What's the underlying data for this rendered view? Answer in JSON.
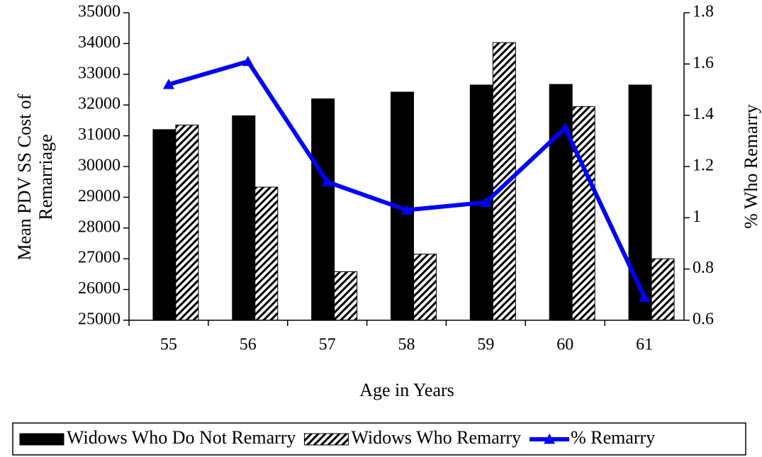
{
  "chart_data": {
    "type": "bar-line",
    "categories": [
      "55",
      "56",
      "57",
      "58",
      "59",
      "60",
      "61"
    ],
    "x_label": "Age in Years",
    "y_label": "Mean PDV SS Cost of Remarriage",
    "y2_label": "% Who Remarry",
    "ylim": [
      25000,
      35000
    ],
    "yticks": [
      25000,
      26000,
      27000,
      28000,
      29000,
      30000,
      31000,
      32000,
      33000,
      34000,
      35000
    ],
    "y2lim": [
      0.6,
      1.8
    ],
    "y2ticks": [
      0.6,
      0.8,
      1,
      1.2,
      1.4,
      1.6,
      1.8
    ],
    "series": [
      {
        "name": "Widows Who Do Not Remarry",
        "color": "#000000",
        "fill": "solid",
        "values": [
          31200,
          31650,
          32200,
          32420,
          32650,
          32670,
          32650
        ]
      },
      {
        "name": "Widows Who Remarry",
        "color": "#000000",
        "fill": "hatch",
        "values": [
          31350,
          29330,
          26580,
          27150,
          34030,
          31950,
          27000
        ]
      },
      {
        "name": "% Remarry",
        "color": "#0000ff",
        "type": "line",
        "axis": "y2",
        "values": [
          1.52,
          1.61,
          1.14,
          1.03,
          1.06,
          1.35,
          0.69
        ]
      }
    ],
    "legend": "bottom"
  }
}
